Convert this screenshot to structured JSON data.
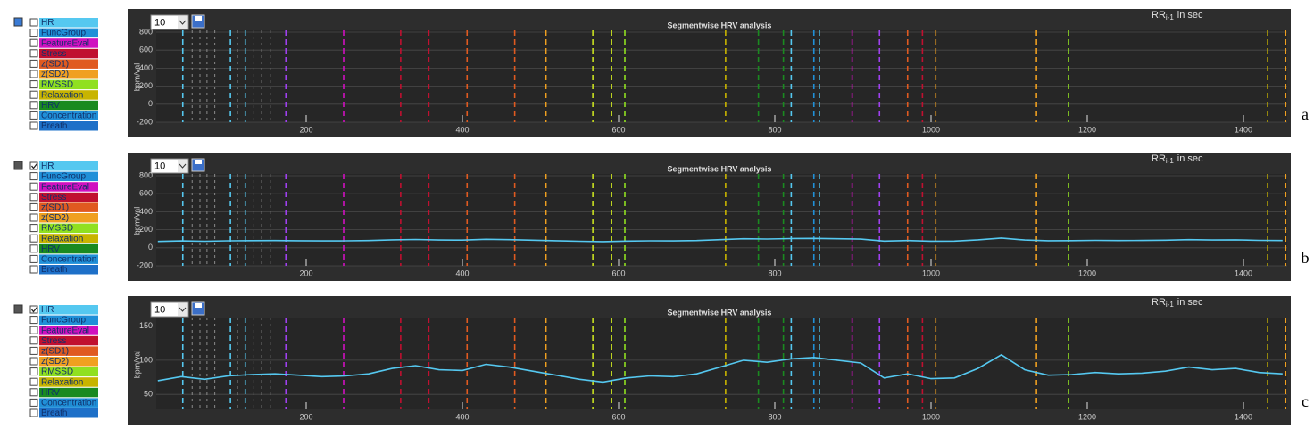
{
  "panels": [
    {
      "letter": "a",
      "dropdown": "10",
      "legend": [
        {
          "label": "HR",
          "color": "#55c8f0",
          "checked": false
        },
        {
          "label": "FuncGroup",
          "color": "#2090d8",
          "checked": false
        },
        {
          "label": "FeatureEval",
          "color": "#d010c0",
          "checked": false
        },
        {
          "label": "Stress",
          "color": "#c01030",
          "checked": false
        },
        {
          "label": "z(SD1)",
          "color": "#e05a20",
          "checked": false
        },
        {
          "label": "z(SD2)",
          "color": "#f0a020",
          "checked": false
        },
        {
          "label": "RMSSD",
          "color": "#90e020",
          "checked": false
        },
        {
          "label": "Relaxation",
          "color": "#c8b400",
          "checked": false
        },
        {
          "label": "HRV",
          "color": "#1a8a20",
          "checked": false
        },
        {
          "label": "Concentration",
          "color": "#2090d8",
          "checked": false
        },
        {
          "label": "Breath",
          "color": "#1e70c8",
          "checked": false
        }
      ],
      "chart_data": {
        "type": "line",
        "title": "Segmentwise HRV analysis",
        "ylabel": "bpm/val",
        "rr_label": {
          "main": "RR",
          "sub": "i-1",
          "rest": "in sec"
        },
        "xlim": [
          8,
          1456
        ],
        "ylim": [
          -200,
          800
        ],
        "xticks": [
          200,
          400,
          600,
          800,
          1000,
          1200,
          1400
        ],
        "yticks": [
          -200,
          0,
          200,
          400,
          600,
          800
        ],
        "grid": true,
        "markers": [
          {
            "x": 42,
            "color": "#55c8f0"
          },
          {
            "x": 54,
            "color": "#8a8a8a"
          },
          {
            "x": 64,
            "color": "#8a8a8a"
          },
          {
            "x": 73,
            "color": "#8a8a8a"
          },
          {
            "x": 83,
            "color": "#8a8a8a"
          },
          {
            "x": 103,
            "color": "#55c8f0"
          },
          {
            "x": 112,
            "color": "#8a8a8a"
          },
          {
            "x": 122,
            "color": "#55c8f0"
          },
          {
            "x": 133,
            "color": "#8a8a8a"
          },
          {
            "x": 143,
            "color": "#8a8a8a"
          },
          {
            "x": 154,
            "color": "#8a8a8a"
          },
          {
            "x": 174,
            "color": "#a040f0"
          },
          {
            "x": 248,
            "color": "#d010c0"
          },
          {
            "x": 321,
            "color": "#c01030"
          },
          {
            "x": 357,
            "color": "#c01030"
          },
          {
            "x": 406,
            "color": "#e05a20"
          },
          {
            "x": 467,
            "color": "#e05a20"
          },
          {
            "x": 507,
            "color": "#f0a020"
          },
          {
            "x": 567,
            "color": "#c8e020"
          },
          {
            "x": 591,
            "color": "#c8e020"
          },
          {
            "x": 608,
            "color": "#90e020"
          },
          {
            "x": 737,
            "color": "#c8b400"
          },
          {
            "x": 779,
            "color": "#1a8a20"
          },
          {
            "x": 811,
            "color": "#1a8a20"
          },
          {
            "x": 821,
            "color": "#55c8f0"
          },
          {
            "x": 850,
            "color": "#2090d8"
          },
          {
            "x": 857,
            "color": "#55c8f0"
          },
          {
            "x": 899,
            "color": "#d010c0"
          },
          {
            "x": 934,
            "color": "#a040f0"
          },
          {
            "x": 970,
            "color": "#e05a20"
          },
          {
            "x": 989,
            "color": "#c01030"
          },
          {
            "x": 1006,
            "color": "#f0a020"
          },
          {
            "x": 1135,
            "color": "#f0a020"
          },
          {
            "x": 1176,
            "color": "#90e020"
          },
          {
            "x": 1431,
            "color": "#c8b400"
          },
          {
            "x": 1454,
            "color": "#f0a020"
          }
        ],
        "x": [],
        "series": []
      }
    },
    {
      "letter": "b",
      "dropdown": "10",
      "legend": [
        {
          "label": "HR",
          "color": "#55c8f0",
          "checked": true
        },
        {
          "label": "FuncGroup",
          "color": "#2090d8",
          "checked": false
        },
        {
          "label": "FeatureEval",
          "color": "#d010c0",
          "checked": false
        },
        {
          "label": "Stress",
          "color": "#c01030",
          "checked": false
        },
        {
          "label": "z(SD1)",
          "color": "#e05a20",
          "checked": false
        },
        {
          "label": "z(SD2)",
          "color": "#f0a020",
          "checked": false
        },
        {
          "label": "RMSSD",
          "color": "#90e020",
          "checked": false
        },
        {
          "label": "Relaxation",
          "color": "#c8b400",
          "checked": false
        },
        {
          "label": "HRV",
          "color": "#1a8a20",
          "checked": false
        },
        {
          "label": "Concentration",
          "color": "#2090d8",
          "checked": false
        },
        {
          "label": "Breath",
          "color": "#1e70c8",
          "checked": false
        }
      ],
      "chart_data": {
        "type": "line",
        "title": "Segmentwise HRV analysis",
        "ylabel": "bpm/val",
        "rr_label": {
          "main": "RR",
          "sub": "i-1",
          "rest": "in sec"
        },
        "xlim": [
          8,
          1456
        ],
        "ylim": [
          -200,
          800
        ],
        "xticks": [
          200,
          400,
          600,
          800,
          1000,
          1200,
          1400
        ],
        "yticks": [
          -200,
          0,
          200,
          400,
          600,
          800
        ],
        "grid": true,
        "markers": [
          {
            "x": 42,
            "color": "#55c8f0"
          },
          {
            "x": 54,
            "color": "#8a8a8a"
          },
          {
            "x": 64,
            "color": "#8a8a8a"
          },
          {
            "x": 73,
            "color": "#8a8a8a"
          },
          {
            "x": 83,
            "color": "#8a8a8a"
          },
          {
            "x": 103,
            "color": "#55c8f0"
          },
          {
            "x": 112,
            "color": "#8a8a8a"
          },
          {
            "x": 122,
            "color": "#55c8f0"
          },
          {
            "x": 133,
            "color": "#8a8a8a"
          },
          {
            "x": 143,
            "color": "#8a8a8a"
          },
          {
            "x": 154,
            "color": "#8a8a8a"
          },
          {
            "x": 174,
            "color": "#a040f0"
          },
          {
            "x": 248,
            "color": "#d010c0"
          },
          {
            "x": 321,
            "color": "#c01030"
          },
          {
            "x": 357,
            "color": "#c01030"
          },
          {
            "x": 406,
            "color": "#e05a20"
          },
          {
            "x": 467,
            "color": "#e05a20"
          },
          {
            "x": 507,
            "color": "#f0a020"
          },
          {
            "x": 567,
            "color": "#c8e020"
          },
          {
            "x": 591,
            "color": "#c8e020"
          },
          {
            "x": 608,
            "color": "#90e020"
          },
          {
            "x": 737,
            "color": "#c8b400"
          },
          {
            "x": 779,
            "color": "#1a8a20"
          },
          {
            "x": 811,
            "color": "#1a8a20"
          },
          {
            "x": 821,
            "color": "#55c8f0"
          },
          {
            "x": 850,
            "color": "#2090d8"
          },
          {
            "x": 857,
            "color": "#55c8f0"
          },
          {
            "x": 899,
            "color": "#d010c0"
          },
          {
            "x": 934,
            "color": "#a040f0"
          },
          {
            "x": 970,
            "color": "#e05a20"
          },
          {
            "x": 989,
            "color": "#c01030"
          },
          {
            "x": 1006,
            "color": "#f0a020"
          },
          {
            "x": 1135,
            "color": "#f0a020"
          },
          {
            "x": 1176,
            "color": "#90e020"
          },
          {
            "x": 1431,
            "color": "#c8b400"
          },
          {
            "x": 1454,
            "color": "#f0a020"
          }
        ],
        "x": [
          10,
          40,
          70,
          100,
          130,
          160,
          190,
          220,
          250,
          280,
          310,
          340,
          370,
          400,
          430,
          460,
          490,
          520,
          550,
          580,
          610,
          640,
          670,
          700,
          730,
          760,
          790,
          820,
          850,
          880,
          910,
          940,
          970,
          1000,
          1030,
          1060,
          1090,
          1120,
          1150,
          1180,
          1210,
          1240,
          1270,
          1300,
          1330,
          1360,
          1390,
          1420,
          1450
        ],
        "series": [
          {
            "color": "#55c8f0",
            "values": [
              70,
              76,
              72,
              77,
              79,
              80,
              78,
              76,
              77,
              80,
              88,
              92,
              86,
              85,
              94,
              90,
              84,
              78,
              72,
              68,
              74,
              77,
              76,
              80,
              90,
              100,
              97,
              102,
              104,
              100,
              96,
              74,
              80,
              73,
              74,
              88,
              108,
              86,
              78,
              79,
              82,
              80,
              81,
              84,
              90,
              86,
              88,
              82,
              80
            ]
          }
        ]
      }
    },
    {
      "letter": "c",
      "dropdown": "10",
      "legend": [
        {
          "label": "HR",
          "color": "#55c8f0",
          "checked": true
        },
        {
          "label": "FuncGroup",
          "color": "#2090d8",
          "checked": false
        },
        {
          "label": "FeatureEval",
          "color": "#d010c0",
          "checked": false
        },
        {
          "label": "Stress",
          "color": "#c01030",
          "checked": false
        },
        {
          "label": "z(SD1)",
          "color": "#e05a20",
          "checked": false
        },
        {
          "label": "z(SD2)",
          "color": "#f0a020",
          "checked": false
        },
        {
          "label": "RMSSD",
          "color": "#90e020",
          "checked": false
        },
        {
          "label": "Relaxation",
          "color": "#c8b400",
          "checked": false
        },
        {
          "label": "HRV",
          "color": "#1a8a20",
          "checked": false
        },
        {
          "label": "Concentration",
          "color": "#2090d8",
          "checked": false
        },
        {
          "label": "Breath",
          "color": "#1e70c8",
          "checked": false
        }
      ],
      "chart_data": {
        "type": "line",
        "title": "Segmentwise HRV analysis",
        "ylabel": "bpm/val",
        "rr_label": {
          "main": "RR",
          "sub": "i-1",
          "rest": "in sec"
        },
        "xlim": [
          8,
          1456
        ],
        "ylim": [
          28,
          160
        ],
        "xticks": [
          200,
          400,
          600,
          800,
          1000,
          1200,
          1400
        ],
        "yticks": [
          50,
          100,
          150
        ],
        "grid": true,
        "markers": [
          {
            "x": 42,
            "color": "#55c8f0"
          },
          {
            "x": 54,
            "color": "#8a8a8a"
          },
          {
            "x": 64,
            "color": "#8a8a8a"
          },
          {
            "x": 73,
            "color": "#8a8a8a"
          },
          {
            "x": 83,
            "color": "#8a8a8a"
          },
          {
            "x": 103,
            "color": "#55c8f0"
          },
          {
            "x": 112,
            "color": "#8a8a8a"
          },
          {
            "x": 122,
            "color": "#55c8f0"
          },
          {
            "x": 133,
            "color": "#8a8a8a"
          },
          {
            "x": 143,
            "color": "#8a8a8a"
          },
          {
            "x": 154,
            "color": "#8a8a8a"
          },
          {
            "x": 174,
            "color": "#a040f0"
          },
          {
            "x": 248,
            "color": "#d010c0"
          },
          {
            "x": 321,
            "color": "#c01030"
          },
          {
            "x": 357,
            "color": "#c01030"
          },
          {
            "x": 406,
            "color": "#e05a20"
          },
          {
            "x": 467,
            "color": "#e05a20"
          },
          {
            "x": 507,
            "color": "#f0a020"
          },
          {
            "x": 567,
            "color": "#c8e020"
          },
          {
            "x": 591,
            "color": "#c8e020"
          },
          {
            "x": 608,
            "color": "#90e020"
          },
          {
            "x": 737,
            "color": "#c8b400"
          },
          {
            "x": 779,
            "color": "#1a8a20"
          },
          {
            "x": 811,
            "color": "#1a8a20"
          },
          {
            "x": 821,
            "color": "#55c8f0"
          },
          {
            "x": 850,
            "color": "#2090d8"
          },
          {
            "x": 857,
            "color": "#55c8f0"
          },
          {
            "x": 899,
            "color": "#d010c0"
          },
          {
            "x": 934,
            "color": "#a040f0"
          },
          {
            "x": 970,
            "color": "#e05a20"
          },
          {
            "x": 989,
            "color": "#c01030"
          },
          {
            "x": 1006,
            "color": "#f0a020"
          },
          {
            "x": 1135,
            "color": "#f0a020"
          },
          {
            "x": 1176,
            "color": "#90e020"
          },
          {
            "x": 1431,
            "color": "#c8b400"
          },
          {
            "x": 1454,
            "color": "#f0a020"
          }
        ],
        "x": [
          10,
          40,
          70,
          100,
          130,
          160,
          190,
          220,
          250,
          280,
          310,
          340,
          370,
          400,
          430,
          460,
          490,
          520,
          550,
          580,
          610,
          640,
          670,
          700,
          730,
          760,
          790,
          820,
          850,
          880,
          910,
          940,
          970,
          1000,
          1030,
          1060,
          1090,
          1120,
          1150,
          1180,
          1210,
          1240,
          1270,
          1300,
          1330,
          1360,
          1390,
          1420,
          1450
        ],
        "series": [
          {
            "color": "#55c8f0",
            "values": [
              70,
              76,
              72,
              77,
              79,
              80,
              78,
              76,
              77,
              80,
              88,
              92,
              86,
              85,
              94,
              90,
              84,
              78,
              72,
              68,
              74,
              77,
              76,
              80,
              90,
              100,
              97,
              102,
              104,
              100,
              96,
              74,
              80,
              73,
              74,
              88,
              108,
              86,
              78,
              79,
              82,
              80,
              81,
              84,
              90,
              86,
              88,
              82,
              80
            ]
          }
        ]
      }
    }
  ]
}
